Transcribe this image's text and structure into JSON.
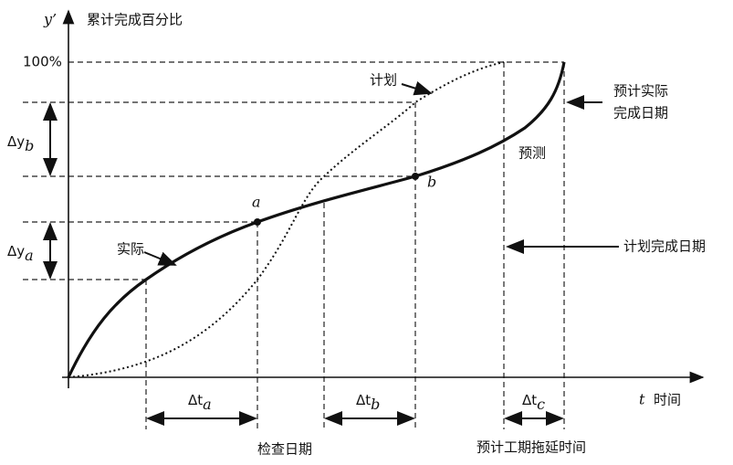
{
  "axes": {
    "y_symbol": "y’",
    "y_label": "累计完成百分比",
    "y_max_label": "100%",
    "x_symbol": "t",
    "x_label": "时间"
  },
  "curves": {
    "planned": "计划",
    "actual": "实际",
    "forecast": "预测"
  },
  "points": {
    "a": "a",
    "b": "b"
  },
  "deltas": {
    "y_b": {
      "delta": "Δy",
      "sub": "b"
    },
    "y_a": {
      "delta": "Δy",
      "sub": "a"
    },
    "t_a": {
      "delta": "Δt",
      "sub": "a"
    },
    "t_b": {
      "delta": "Δt",
      "sub": "b"
    },
    "t_c": {
      "delta": "Δt",
      "sub": "c"
    }
  },
  "annotations": {
    "forecast_finish": [
      "预计实际",
      "完成日期"
    ],
    "planned_finish": "计划完成日期",
    "check_date": "检查日期",
    "delay": "预计工期拖延时间"
  }
}
